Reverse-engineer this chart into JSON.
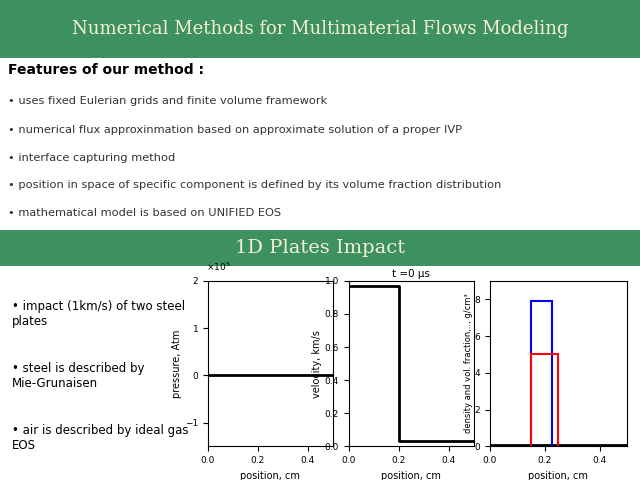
{
  "title": "Numerical Methods for Multimaterial Flows Modeling",
  "title_bg": "#3d9160",
  "title_color": "#f5f0d0",
  "section2_title": "1D Plates Impact",
  "section2_bg": "#3d9160",
  "section2_color": "#f5f0d0",
  "bg_color": "#ffffff",
  "features_header": "Features of our method :",
  "features": [
    "uses fixed Eulerian grids and finite volume framework",
    "numerical flux approxinmation based on approximate solution of a proper IVP",
    "interface capturing method",
    "position in space of specific component is defined by its volume fraction distribution",
    "mathematical model is based on UNIFIED EOS"
  ],
  "bullets": [
    "impact (1km/s) of two steel\nplates",
    "steel is described by\nMie-Grunaisen",
    "air is described by ideal gas\nEOS"
  ],
  "plot1_xlabel": "position, cm",
  "plot1_ylabel": "pressure, Atm",
  "plot1_xlim": [
    0,
    0.5
  ],
  "plot1_ylim": [
    -1.5,
    2.0
  ],
  "plot1_yticks": [
    -1,
    0,
    1,
    2
  ],
  "plot1_xticks": [
    0,
    0.2,
    0.4
  ],
  "plot2_xlabel": "position, cm",
  "plot2_ylabel": "velocity, km/s",
  "plot2_title": "t =0 μs",
  "plot2_xlim": [
    0,
    0.5
  ],
  "plot2_ylim": [
    0,
    1.0
  ],
  "plot2_yticks": [
    0,
    0.2,
    0.4,
    0.6,
    0.8,
    1.0
  ],
  "plot2_xticks": [
    0,
    0.2,
    0.4
  ],
  "plot3_xlabel": "position, cm",
  "plot3_ylabel": "density and vol. fraction,.., g/cm³",
  "plot3_xlim": [
    0,
    0.5
  ],
  "plot3_ylim": [
    0,
    9
  ],
  "plot3_yticks": [
    0,
    2,
    4,
    6,
    8
  ],
  "plot3_xticks": [
    0,
    0.2,
    0.4
  ]
}
